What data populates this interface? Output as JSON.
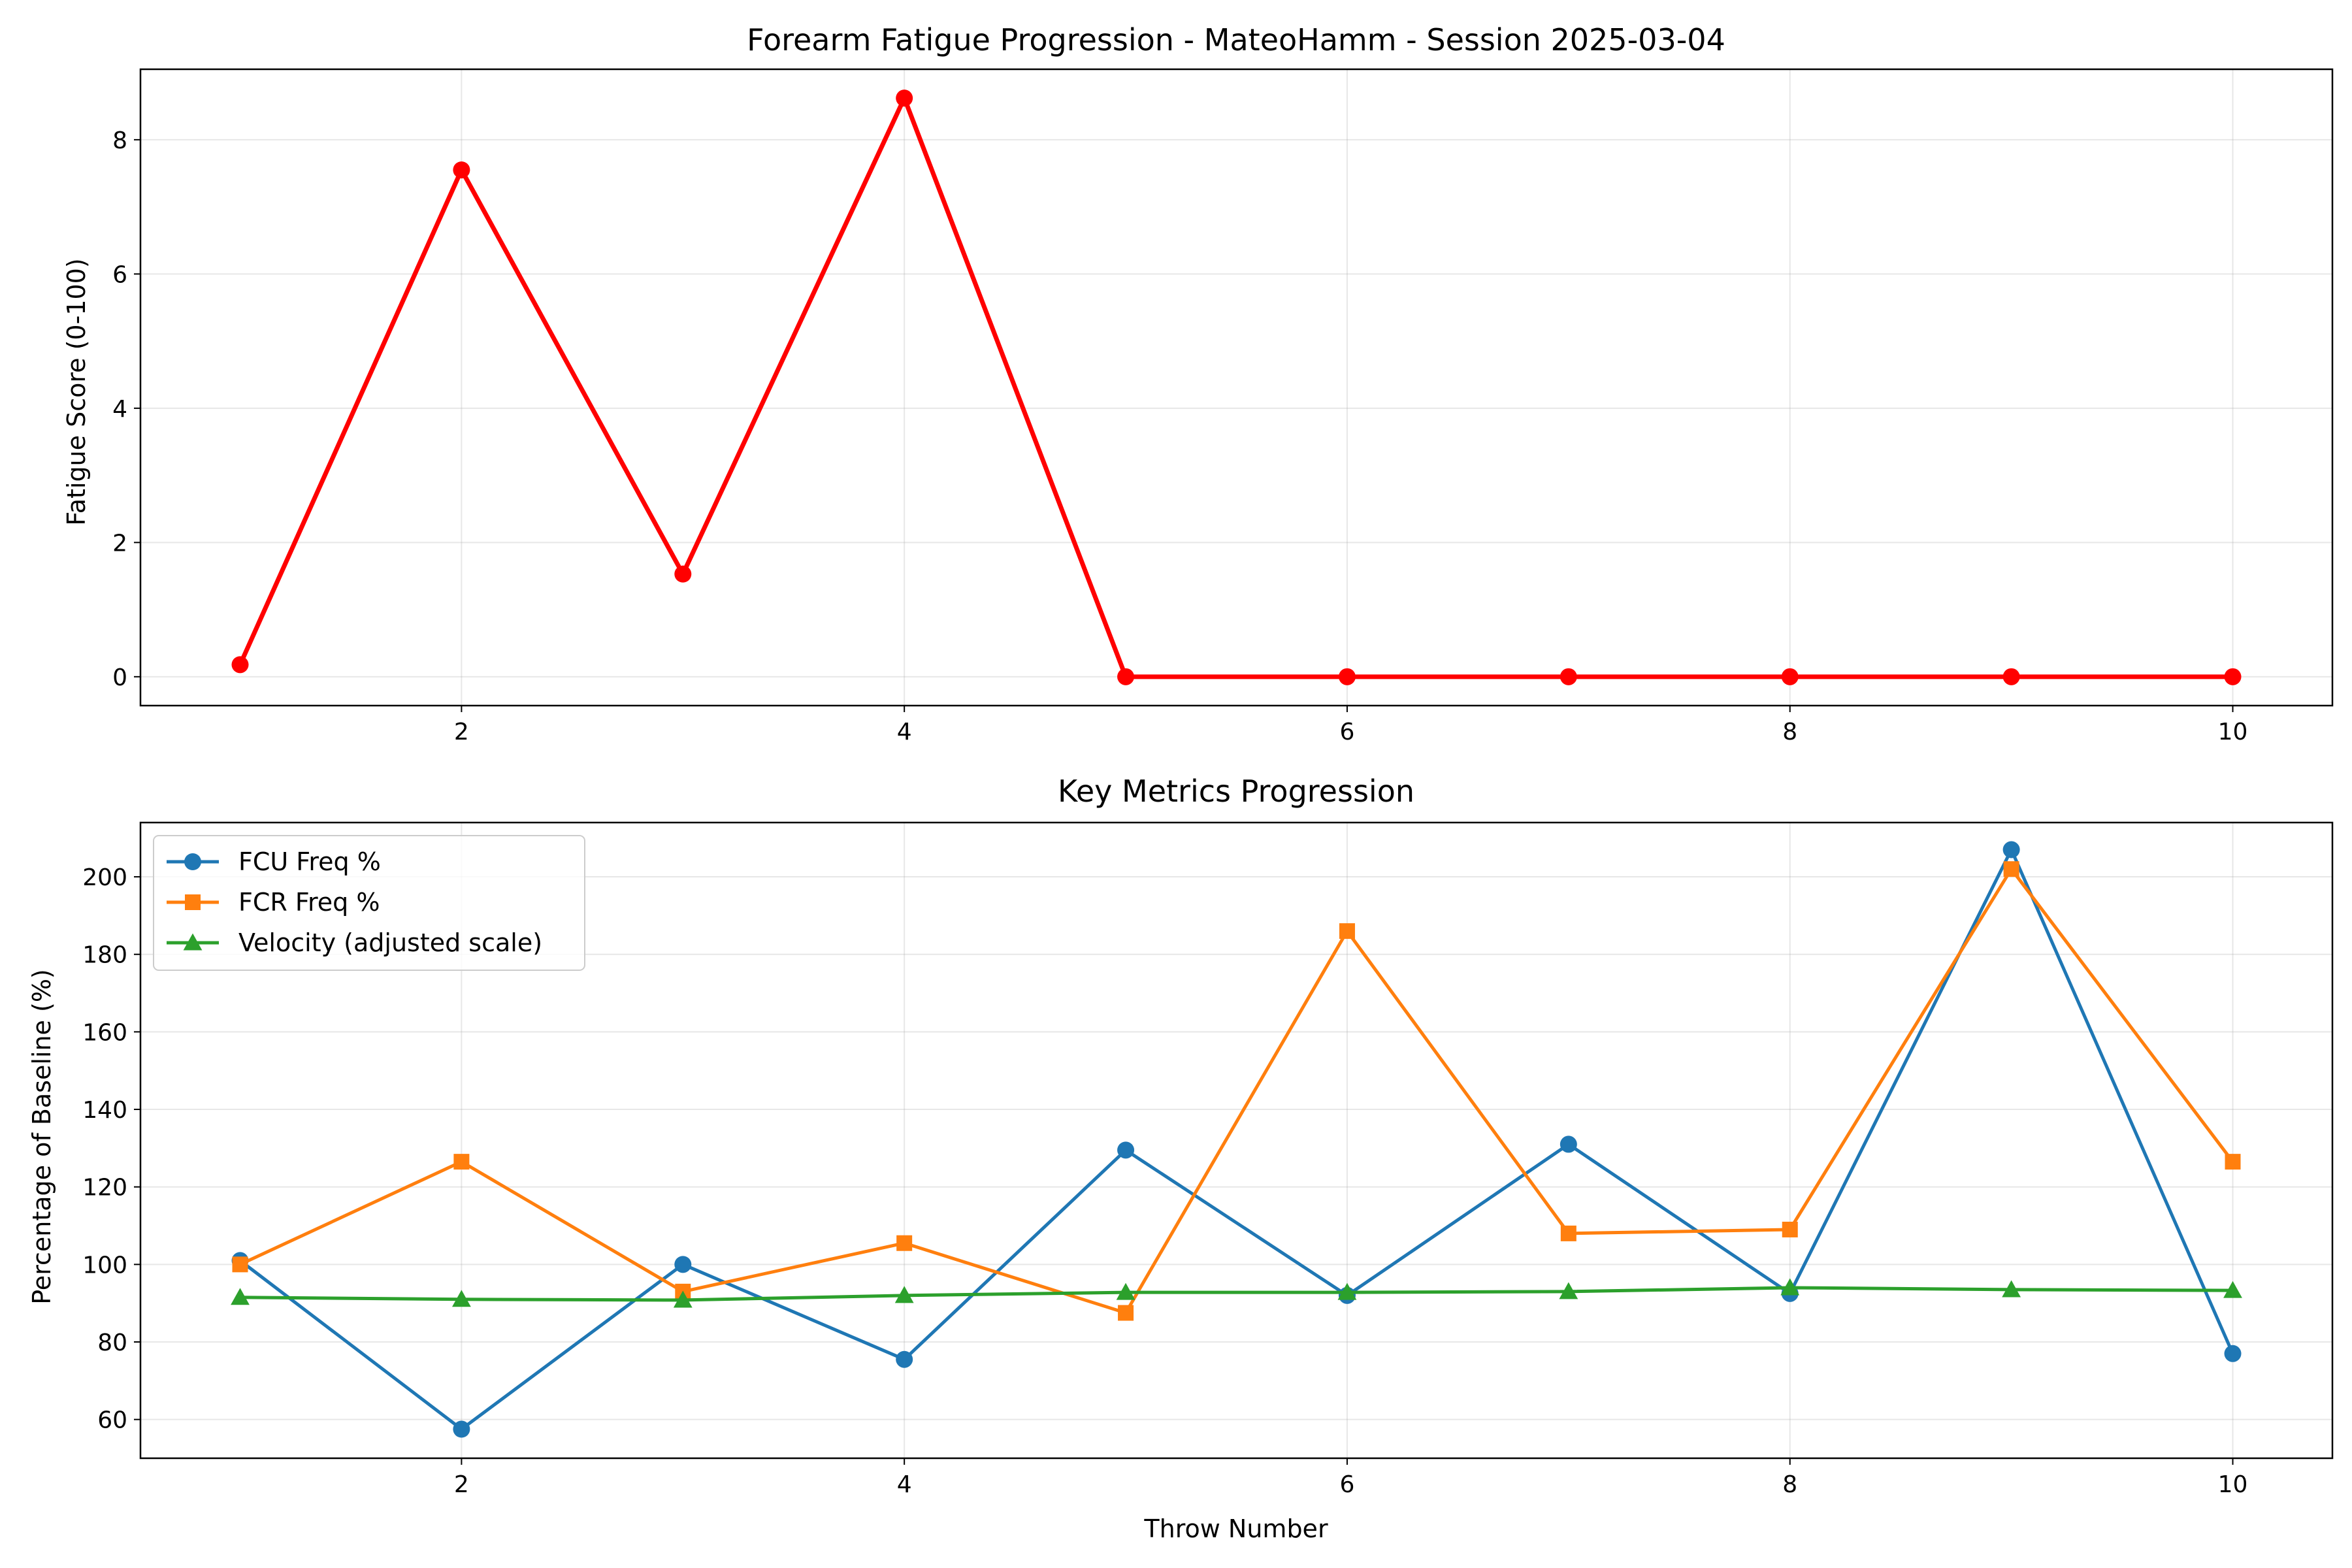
{
  "chart_data": [
    {
      "type": "line",
      "title": "Forearm Fatigue Progression - MateoHamm - Session 2025-03-04",
      "xlabel": "",
      "ylabel": "Fatigue Score (0-100)",
      "xlim": [
        0.55,
        10.45
      ],
      "ylim": [
        -0.43,
        9.05
      ],
      "xticks": [
        2,
        4,
        6,
        8,
        10
      ],
      "yticks": [
        0,
        2,
        4,
        6,
        8
      ],
      "grid": true,
      "series": [
        {
          "x": [
            1,
            2,
            3,
            4,
            5,
            6,
            7,
            8,
            9,
            10
          ],
          "values": [
            0.18,
            7.55,
            1.53,
            8.62,
            0,
            0,
            0,
            0,
            0,
            0
          ],
          "color": "#ff0000",
          "marker": "circle"
        }
      ]
    },
    {
      "type": "line",
      "title": "Key Metrics Progression",
      "xlabel": "Throw Number",
      "ylabel": "Percentage of Baseline (%)",
      "xlim": [
        0.55,
        10.45
      ],
      "ylim": [
        50,
        214
      ],
      "xticks": [
        2,
        4,
        6,
        8,
        10
      ],
      "yticks": [
        60,
        80,
        100,
        120,
        140,
        160,
        180,
        200
      ],
      "grid": true,
      "legend_position": "top-left",
      "series": [
        {
          "name": "FCU Freq %",
          "x": [
            1,
            2,
            3,
            4,
            5,
            6,
            7,
            8,
            9,
            10
          ],
          "values": [
            101,
            57.5,
            100,
            75.5,
            129.5,
            92,
            131,
            92.5,
            207,
            77
          ],
          "color": "#1f77b4",
          "marker": "circle"
        },
        {
          "name": "FCR Freq %",
          "x": [
            1,
            2,
            3,
            4,
            5,
            6,
            7,
            8,
            9,
            10
          ],
          "values": [
            100,
            126.5,
            93,
            105.5,
            87.5,
            186,
            108,
            109,
            202,
            126.5
          ],
          "color": "#ff7f0e",
          "marker": "square"
        },
        {
          "name": "Velocity (adjusted scale)",
          "x": [
            1,
            2,
            3,
            4,
            5,
            6,
            7,
            8,
            9,
            10
          ],
          "values": [
            91.5,
            91,
            90.8,
            92,
            92.8,
            92.8,
            93,
            94,
            93.5,
            93.3
          ],
          "color": "#2ca02c",
          "marker": "triangle"
        }
      ]
    }
  ]
}
